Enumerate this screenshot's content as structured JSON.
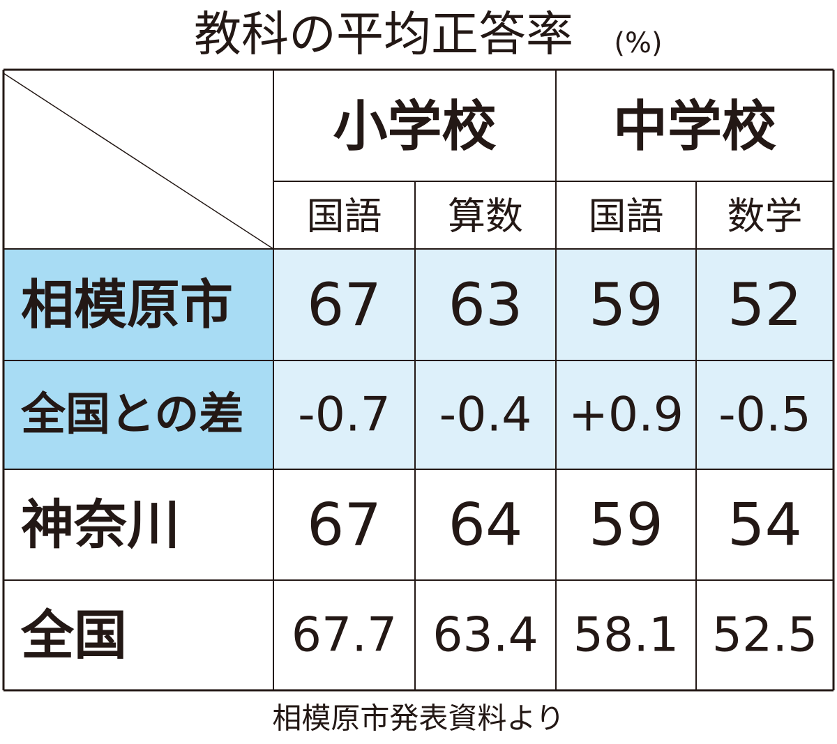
{
  "title": "教科の平均正答率",
  "title_unit": "(%)",
  "table": {
    "groups": [
      {
        "label": "小学校",
        "subjects": [
          "国語",
          "算数"
        ]
      },
      {
        "label": "中学校",
        "subjects": [
          "国語",
          "数学"
        ]
      }
    ],
    "rows": [
      {
        "label": "相模原市",
        "cells": [
          "67",
          "63",
          "59",
          "52"
        ]
      },
      {
        "label": "全国との差",
        "cells": [
          "-0.7",
          "-0.4",
          "+0.9",
          "-0.5"
        ]
      },
      {
        "label": "神奈川",
        "cells": [
          "67",
          "64",
          "59",
          "54"
        ]
      },
      {
        "label": "全国",
        "cells": [
          "67.7",
          "63.4",
          "58.1",
          "52.5"
        ]
      }
    ]
  },
  "source": "相模原市発表資料より"
}
